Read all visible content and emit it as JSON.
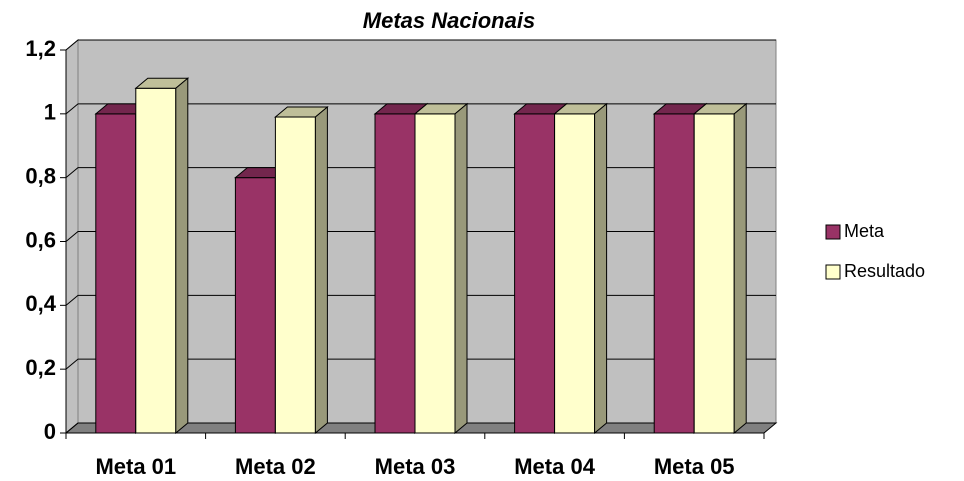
{
  "chart_data": {
    "type": "bar3d",
    "title": "Metas Nacionais",
    "categories": [
      "Meta 01",
      "Meta 02",
      "Meta 03",
      "Meta 04",
      "Meta 05"
    ],
    "series": [
      {
        "name": "Meta",
        "color": "#993366",
        "values": [
          1,
          0.8,
          1,
          1,
          1
        ]
      },
      {
        "name": "Resultado",
        "color": "#ffffcc",
        "values": [
          1.08,
          0.99,
          1,
          1,
          1
        ]
      }
    ],
    "ylim": [
      0,
      1.2
    ],
    "yticks": [
      0,
      {
        "value": 0.2,
        "label": "0,2"
      },
      {
        "value": 0.4,
        "label": "0,4"
      },
      {
        "value": 0.6,
        "label": "0,6"
      },
      {
        "value": 0.8,
        "label": "0,8"
      },
      1,
      {
        "value": 1.2,
        "label": "1,2"
      }
    ],
    "grid": true,
    "legend": "right"
  }
}
